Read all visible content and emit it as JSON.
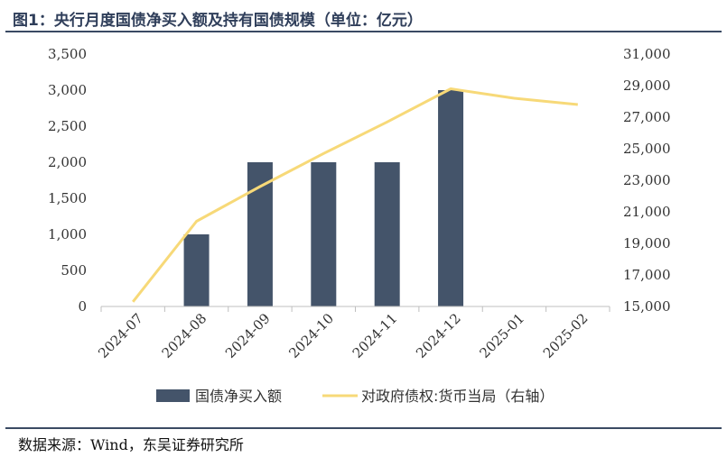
{
  "title": "图1：央行月度国债净买入额及持有国债规模（单位：亿元）",
  "source": "数据来源：Wind，东吴证券研究所",
  "chart_data": {
    "type": "bar+line",
    "categories": [
      "2024-07",
      "2024-08",
      "2024-09",
      "2024-10",
      "2024-11",
      "2024-12",
      "2025-01",
      "2025-02"
    ],
    "series": [
      {
        "name": "国债净买入额",
        "type": "bar",
        "axis": "left",
        "color": "#44546a",
        "values": [
          null,
          1000,
          2000,
          2000,
          2000,
          3000,
          null,
          null
        ]
      },
      {
        "name": "对政府债权:货币当局（右轴）",
        "type": "line",
        "axis": "right",
        "color": "#f7d978",
        "values": [
          15300,
          20400,
          22600,
          24700,
          26700,
          28800,
          28200,
          27800
        ]
      }
    ],
    "left_axis": {
      "min": 0,
      "max": 3500,
      "ticks": [
        "0",
        "500",
        "1,000",
        "1,500",
        "2,000",
        "2,500",
        "3,000",
        "3,500"
      ]
    },
    "right_axis": {
      "min": 15000,
      "max": 31000,
      "ticks": [
        "15,000",
        "17,000",
        "19,000",
        "21,000",
        "23,000",
        "25,000",
        "27,000",
        "29,000",
        "31,000"
      ]
    },
    "legend_position": "bottom",
    "grid": false
  }
}
